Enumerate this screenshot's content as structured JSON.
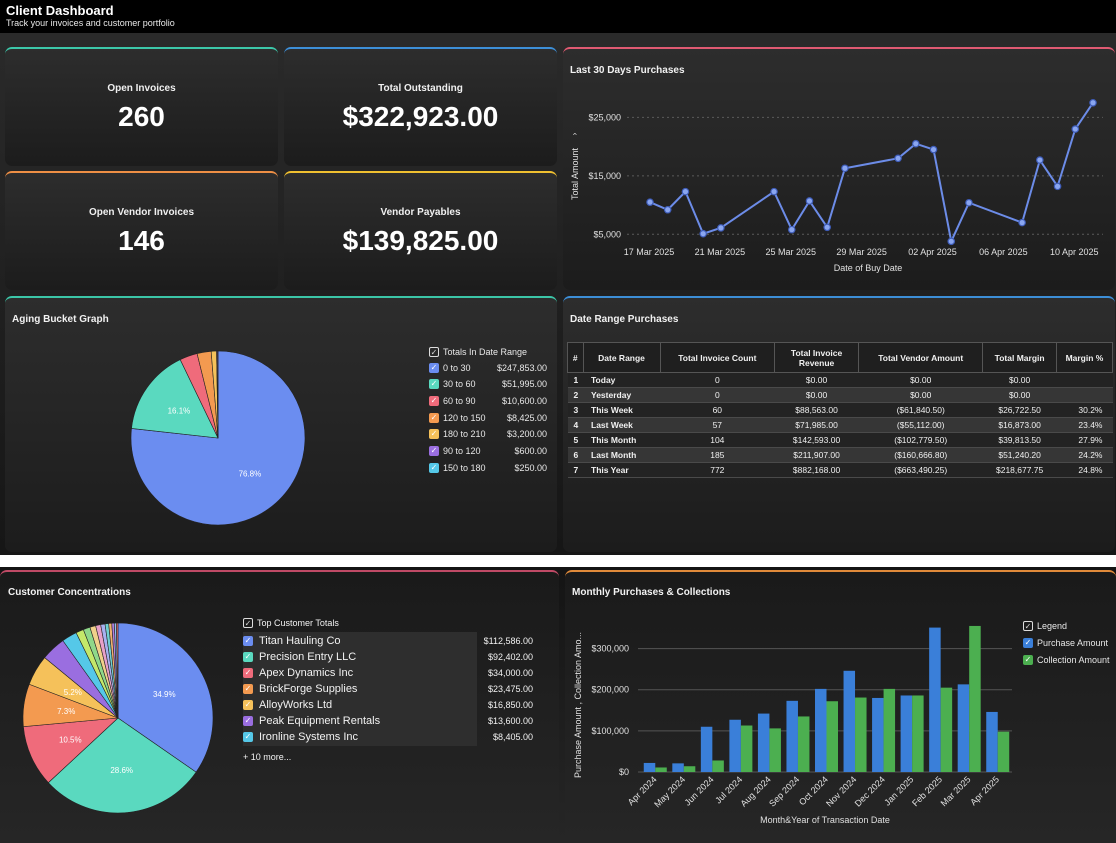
{
  "header": {
    "title": "Client Dashboard",
    "subtitle": "Track your invoices and customer portfolio"
  },
  "kpis": [
    {
      "label": "Open Invoices",
      "value": "260",
      "color": "#3cc7a9"
    },
    {
      "label": "Total Outstanding",
      "value": "$322,923.00",
      "color": "#3d8fd8"
    },
    {
      "label": "Open Vendor Invoices",
      "value": "146",
      "color": "#ee8f45"
    },
    {
      "label": "Vendor Payables",
      "value": "$139,825.00",
      "color": "#f0c030"
    }
  ],
  "purchases30": {
    "title": "Last 30 Days Purchases",
    "chart_data": {
      "type": "line",
      "xlabel": "Date of Buy Date",
      "ylabel": "Total Amount",
      "x_ticks": [
        "17 Mar 2025",
        "21 Mar 2025",
        "25 Mar 2025",
        "29 Mar 2025",
        "02 Apr 2025",
        "06 Apr 2025",
        "10 Apr 2025"
      ],
      "y_ticks": [
        "$5,000",
        "$15,000",
        "$25,000"
      ],
      "ylim": [
        3000,
        29000
      ],
      "x_day_range": [
        0,
        26
      ],
      "points": [
        {
          "d": 0,
          "v": 10500
        },
        {
          "d": 1,
          "v": 9200
        },
        {
          "d": 2,
          "v": 12300
        },
        {
          "d": 3,
          "v": 5100
        },
        {
          "d": 4,
          "v": 6100
        },
        {
          "d": 7,
          "v": 12300
        },
        {
          "d": 8,
          "v": 5800
        },
        {
          "d": 9,
          "v": 10700
        },
        {
          "d": 10,
          "v": 6200
        },
        {
          "d": 11,
          "v": 16300
        },
        {
          "d": 14,
          "v": 18000
        },
        {
          "d": 15,
          "v": 20500
        },
        {
          "d": 16,
          "v": 19500
        },
        {
          "d": 17,
          "v": 3800
        },
        {
          "d": 18,
          "v": 10400
        },
        {
          "d": 21,
          "v": 7000
        },
        {
          "d": 22,
          "v": 17700
        },
        {
          "d": 23,
          "v": 13200
        },
        {
          "d": 24,
          "v": 23000
        },
        {
          "d": 25,
          "v": 27500
        }
      ],
      "color": "#6c8ce8"
    }
  },
  "aging": {
    "title": "Aging Bucket Graph",
    "legend_title": "Totals In Date Range",
    "chart_data": {
      "type": "pie",
      "slices": [
        {
          "label": "0 to 30",
          "value": 247853,
          "display": "$247,853.00",
          "color": "#6b8df0",
          "pct": "76.8%"
        },
        {
          "label": "30 to 60",
          "value": 51995,
          "display": "$51,995.00",
          "color": "#5ad9bf",
          "pct": "16.1%"
        },
        {
          "label": "60 to 90",
          "value": 10600,
          "display": "$10,600.00",
          "color": "#ef6b7b",
          "pct": ""
        },
        {
          "label": "120 to 150",
          "value": 8425,
          "display": "$8,425.00",
          "color": "#f39a50",
          "pct": ""
        },
        {
          "label": "180 to 210",
          "value": 3200,
          "display": "$3,200.00",
          "color": "#f5c15a",
          "pct": ""
        },
        {
          "label": "90 to 120",
          "value": 600,
          "display": "$600.00",
          "color": "#9a6ee0",
          "pct": ""
        },
        {
          "label": "150 to 180",
          "value": 250,
          "display": "$250.00",
          "color": "#55c8e8",
          "pct": ""
        }
      ]
    }
  },
  "date_range": {
    "title": "Date Range Purchases",
    "columns": [
      "#",
      "Date Range",
      "Total Invoice Count",
      "Total Invoice Revenue",
      "Total Vendor Amount",
      "Total Margin",
      "Margin %"
    ],
    "rows": [
      [
        "1",
        "Today",
        "0",
        "$0.00",
        "$0.00",
        "$0.00",
        ""
      ],
      [
        "2",
        "Yesterday",
        "0",
        "$0.00",
        "$0.00",
        "$0.00",
        ""
      ],
      [
        "3",
        "This Week",
        "60",
        "$88,563.00",
        "($61,840.50)",
        "$26,722.50",
        "30.2%"
      ],
      [
        "4",
        "Last Week",
        "57",
        "$71,985.00",
        "($55,112.00)",
        "$16,873.00",
        "23.4%"
      ],
      [
        "5",
        "This Month",
        "104",
        "$142,593.00",
        "($102,779.50)",
        "$39,813.50",
        "27.9%"
      ],
      [
        "6",
        "Last Month",
        "185",
        "$211,907.00",
        "($160,666.80)",
        "$51,240.20",
        "24.2%"
      ],
      [
        "7",
        "This Year",
        "772",
        "$882,168.00",
        "($663,490.25)",
        "$218,677.75",
        "24.8%"
      ]
    ]
  },
  "customers": {
    "title": "Customer Concentrations",
    "legend_title": "Top Customer Totals",
    "more": "+ 10 more...",
    "chart_data": {
      "type": "pie",
      "slices": [
        {
          "label": "Titan Hauling Co",
          "value": 112586,
          "display": "$112,586.00",
          "color": "#6b8df0",
          "pct": "34.9%"
        },
        {
          "label": "Precision Entry LLC",
          "value": 92402,
          "display": "$92,402.00",
          "color": "#5ad9bf",
          "pct": "28.6%"
        },
        {
          "label": "Apex Dynamics Inc",
          "value": 34000,
          "display": "$34,000.00",
          "color": "#ef6b7b",
          "pct": "10.5%"
        },
        {
          "label": "BrickForge Supplies",
          "value": 23475,
          "display": "$23,475.00",
          "color": "#f39a50",
          "pct": "7.3%"
        },
        {
          "label": "AlloyWorks Ltd",
          "value": 16850,
          "display": "$16,850.00",
          "color": "#f5c15a",
          "pct": "5.2%"
        },
        {
          "label": "Peak Equipment Rentals",
          "value": 13600,
          "display": "$13,600.00",
          "color": "#9a6ee0",
          "pct": ""
        },
        {
          "label": "Ironline Systems Inc",
          "value": 8405,
          "display": "$8,405.00",
          "color": "#55c8e8",
          "pct": ""
        }
      ],
      "other_slices": [
        {
          "value": 4300,
          "color": "#c4e86a"
        },
        {
          "value": 3800,
          "color": "#8fd88a"
        },
        {
          "value": 3200,
          "color": "#f0d08a"
        },
        {
          "value": 2800,
          "color": "#e8a0c8"
        },
        {
          "value": 2400,
          "color": "#a8b0f0"
        },
        {
          "value": 2000,
          "color": "#70d0d0"
        },
        {
          "value": 1700,
          "color": "#f0b070"
        },
        {
          "value": 1400,
          "color": "#b080e0"
        },
        {
          "value": 1100,
          "color": "#90c0f0"
        },
        {
          "value": 900,
          "color": "#e07070"
        }
      ]
    }
  },
  "monthly": {
    "title": "Monthly Purchases & Collections",
    "legend_title": "Legend",
    "chart_data": {
      "type": "bar",
      "xlabel": "Month&Year of Transaction Date",
      "ylabel": "Purchase Amount , Collection Amo...",
      "categories": [
        "Apr 2024",
        "May 2024",
        "Jun 2024",
        "Jul 2024",
        "Aug 2024",
        "Sep 2024",
        "Oct 2024",
        "Nov 2024",
        "Dec 2024",
        "Jan 2025",
        "Feb 2025",
        "Mar 2025",
        "Apr 2025"
      ],
      "y_ticks": [
        "$0",
        "$100,000",
        "$200,000",
        "$300,000"
      ],
      "ylim": [
        0,
        360000
      ],
      "series": [
        {
          "name": "Purchase Amount",
          "color": "#3a7fd9",
          "values": [
            22000,
            21000,
            110000,
            127000,
            142000,
            173000,
            202000,
            246000,
            180000,
            186000,
            351000,
            213000,
            146000
          ]
        },
        {
          "name": "Collection Amount",
          "color": "#4caf50",
          "values": [
            11000,
            14000,
            28000,
            113000,
            106000,
            135000,
            172000,
            181000,
            202000,
            186000,
            205000,
            355000,
            98000
          ]
        }
      ]
    }
  }
}
